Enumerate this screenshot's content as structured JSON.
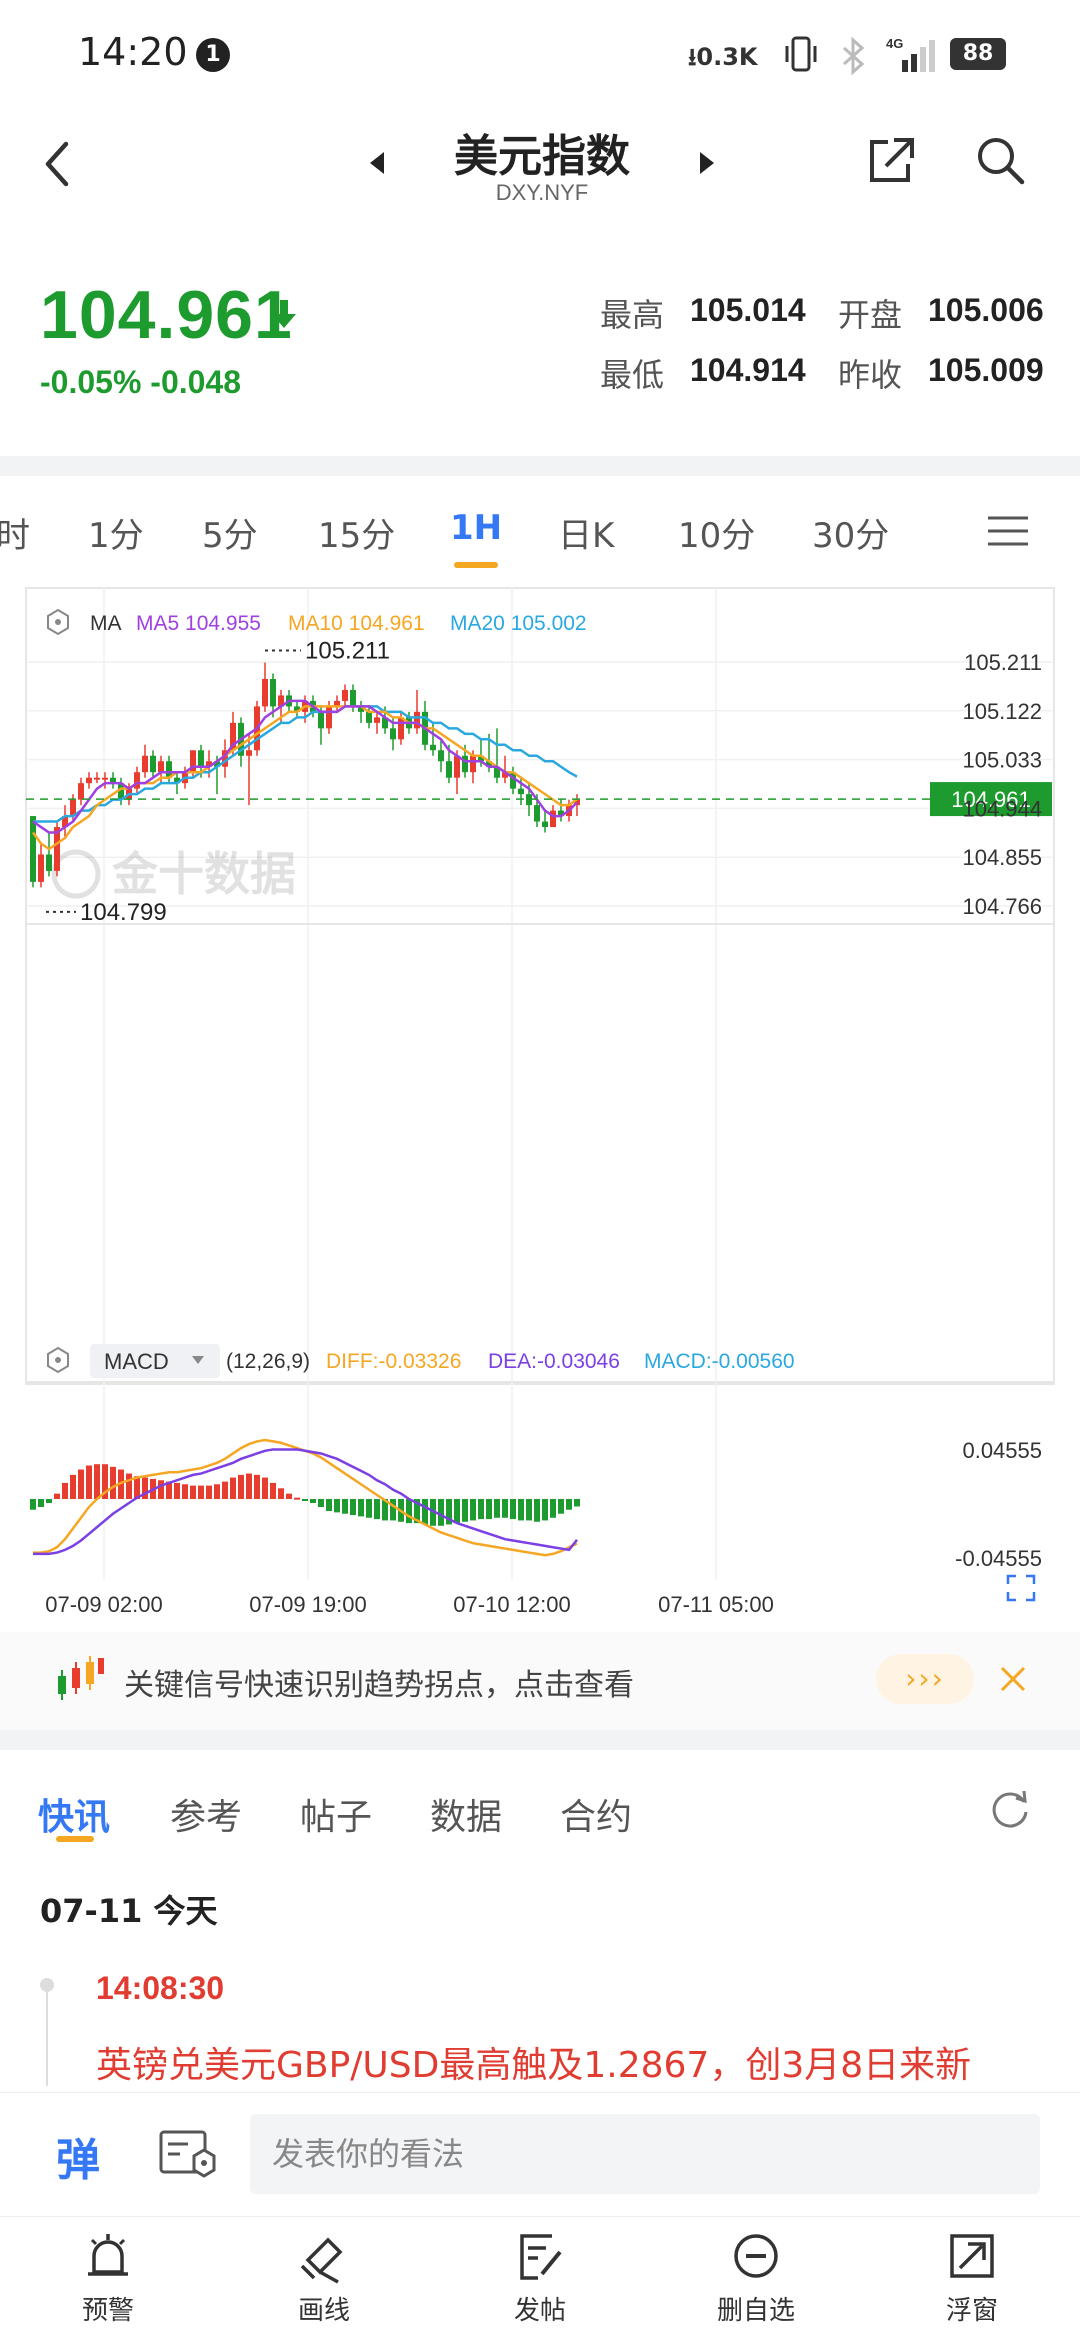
{
  "status_bar": {
    "time": "14:20",
    "notification_count": "1",
    "net_speed": "0.3K",
    "network": "4G",
    "battery": "88"
  },
  "header": {
    "title": "美元指数",
    "subtitle": "DXY.NYF"
  },
  "quote": {
    "price": "104.961",
    "change": "-0.05% -0.048",
    "direction": "down",
    "color": "#1e9b2e",
    "stats": [
      {
        "label": "最高",
        "value": "105.014"
      },
      {
        "label": "开盘",
        "value": "105.006"
      },
      {
        "label": "最低",
        "value": "104.914"
      },
      {
        "label": "昨收",
        "value": "105.009"
      }
    ]
  },
  "interval_tabs": [
    "时",
    "1分",
    "5分",
    "15分",
    "1H",
    "日K",
    "10分",
    "30分"
  ],
  "active_interval": "1H",
  "chart_data": {
    "type": "candlestick",
    "ma_legend": {
      "label": "MA",
      "ma5": "MA5 104.955",
      "ma10": "MA10 104.961",
      "ma20": "MA20 105.002",
      "colors": {
        "ma5": "#a040e0",
        "ma10": "#f5a623",
        "ma20": "#2aa8e0"
      }
    },
    "y_ticks": [
      "105.211",
      "105.122",
      "105.033",
      "104.944",
      "104.855",
      "104.766"
    ],
    "ylim": [
      104.766,
      105.211
    ],
    "high_label": "105.211",
    "low_label": "104.799",
    "current_price_label": "104.961",
    "x_ticks": [
      "07-09 02:00",
      "07-09 19:00",
      "07-10 12:00",
      "07-11 05:00"
    ],
    "watermark": "金十数据",
    "up_color": "#e83c2e",
    "down_color": "#1e9b2e",
    "candles": [
      [
        104.93,
        104.93,
        104.8,
        104.81
      ],
      [
        104.81,
        104.88,
        104.8,
        104.86
      ],
      [
        104.86,
        104.9,
        104.82,
        104.83
      ],
      [
        104.83,
        104.92,
        104.82,
        104.91
      ],
      [
        104.91,
        104.95,
        104.89,
        104.93
      ],
      [
        104.93,
        104.97,
        104.92,
        104.96
      ],
      [
        104.96,
        105.0,
        104.95,
        104.99
      ],
      [
        104.99,
        105.01,
        104.98,
        105.0
      ],
      [
        105.0,
        105.01,
        104.99,
        105.0
      ],
      [
        105.0,
        105.01,
        104.98,
        105.0
      ],
      [
        105.0,
        105.01,
        104.98,
        104.99
      ],
      [
        104.99,
        105.0,
        104.95,
        104.96
      ],
      [
        104.96,
        104.99,
        104.95,
        104.98
      ],
      [
        104.98,
        105.02,
        104.97,
        105.01
      ],
      [
        105.01,
        105.06,
        105.0,
        105.04
      ],
      [
        105.04,
        105.05,
        105.0,
        105.01
      ],
      [
        105.01,
        105.04,
        104.99,
        105.03
      ],
      [
        105.03,
        105.04,
        104.99,
        105.0
      ],
      [
        105.0,
        105.01,
        104.97,
        104.99
      ],
      [
        104.99,
        105.02,
        104.98,
        105.01
      ],
      [
        105.01,
        105.05,
        105.0,
        105.05
      ],
      [
        105.05,
        105.06,
        105.0,
        105.02
      ],
      [
        105.02,
        105.05,
        105.0,
        105.03
      ],
      [
        105.03,
        105.04,
        104.97,
        105.02
      ],
      [
        105.02,
        105.07,
        105.0,
        105.05
      ],
      [
        105.05,
        105.12,
        105.04,
        105.1
      ],
      [
        105.1,
        105.11,
        105.02,
        105.04
      ],
      [
        105.04,
        105.08,
        104.95,
        105.05
      ],
      [
        105.05,
        105.14,
        105.04,
        105.13
      ],
      [
        105.13,
        105.21,
        105.12,
        105.18
      ],
      [
        105.18,
        105.19,
        105.11,
        105.13
      ],
      [
        105.13,
        105.16,
        105.1,
        105.15
      ],
      [
        105.15,
        105.16,
        105.12,
        105.13
      ],
      [
        105.13,
        105.14,
        105.11,
        105.12
      ],
      [
        105.12,
        105.15,
        105.1,
        105.14
      ],
      [
        105.14,
        105.15,
        105.11,
        105.12
      ],
      [
        105.12,
        105.13,
        105.06,
        105.09
      ],
      [
        105.09,
        105.14,
        105.08,
        105.13
      ],
      [
        105.13,
        105.15,
        105.12,
        105.14
      ],
      [
        105.14,
        105.17,
        105.13,
        105.16
      ],
      [
        105.16,
        105.17,
        105.12,
        105.13
      ],
      [
        105.13,
        105.14,
        105.1,
        105.12
      ],
      [
        105.12,
        105.13,
        105.09,
        105.1
      ],
      [
        105.1,
        105.12,
        105.08,
        105.11
      ],
      [
        105.11,
        105.13,
        105.08,
        105.09
      ],
      [
        105.09,
        105.11,
        105.05,
        105.07
      ],
      [
        105.07,
        105.12,
        105.06,
        105.11
      ],
      [
        105.11,
        105.12,
        105.08,
        105.09
      ],
      [
        105.09,
        105.16,
        105.08,
        105.12
      ],
      [
        105.12,
        105.14,
        105.05,
        105.06
      ],
      [
        105.06,
        105.1,
        105.04,
        105.05
      ],
      [
        105.05,
        105.07,
        105.01,
        105.03
      ],
      [
        105.03,
        105.06,
        104.99,
        105.0
      ],
      [
        105.0,
        105.05,
        104.97,
        105.04
      ],
      [
        105.04,
        105.06,
        105.0,
        105.01
      ],
      [
        105.01,
        105.05,
        104.99,
        105.04
      ],
      [
        105.04,
        105.07,
        105.02,
        105.03
      ],
      [
        105.03,
        105.08,
        105.01,
        105.02
      ],
      [
        105.02,
        105.09,
        104.99,
        105.0
      ],
      [
        105.0,
        105.04,
        104.99,
        105.01
      ],
      [
        105.01,
        105.02,
        104.97,
        104.98
      ],
      [
        104.98,
        105.0,
        104.95,
        104.97
      ],
      [
        104.97,
        104.99,
        104.93,
        104.95
      ],
      [
        104.95,
        104.97,
        104.91,
        104.92
      ],
      [
        104.92,
        104.94,
        104.9,
        104.91
      ],
      [
        104.91,
        104.95,
        104.91,
        104.94
      ],
      [
        104.94,
        104.96,
        104.92,
        104.93
      ],
      [
        104.93,
        104.96,
        104.92,
        104.95
      ],
      [
        104.95,
        104.97,
        104.93,
        104.96
      ]
    ],
    "ma5": [
      104.92,
      104.91,
      104.9,
      104.9,
      104.91,
      104.92,
      104.94,
      104.96,
      104.98,
      104.99,
      104.99,
      104.99,
      104.98,
      104.99,
      104.99,
      105.0,
      105.01,
      105.01,
      105.01,
      105.01,
      105.02,
      105.02,
      105.02,
      105.03,
      105.04,
      105.06,
      105.07,
      105.08,
      105.09,
      105.11,
      105.12,
      105.13,
      105.14,
      105.14,
      105.14,
      105.13,
      105.12,
      105.12,
      105.12,
      105.13,
      105.13,
      105.13,
      105.13,
      105.12,
      105.11,
      105.1,
      105.1,
      105.1,
      105.1,
      105.09,
      105.08,
      105.07,
      105.05,
      105.04,
      105.03,
      105.03,
      105.03,
      105.02,
      105.02,
      105.01,
      105.0,
      104.99,
      104.98,
      104.96,
      104.94,
      104.93,
      104.93,
      104.94,
      104.955
    ],
    "ma10": [
      104.9,
      104.88,
      104.87,
      104.88,
      104.89,
      104.91,
      104.92,
      104.93,
      104.95,
      104.96,
      104.97,
      104.98,
      104.98,
      104.99,
      104.99,
      104.99,
      105.0,
      105.0,
      105.01,
      105.01,
      105.01,
      105.01,
      105.02,
      105.03,
      105.04,
      105.05,
      105.06,
      105.07,
      105.08,
      105.09,
      105.1,
      105.11,
      105.12,
      105.12,
      105.13,
      105.13,
      105.13,
      105.13,
      105.13,
      105.13,
      105.13,
      105.13,
      105.12,
      105.12,
      105.12,
      105.11,
      105.11,
      105.1,
      105.1,
      105.09,
      105.09,
      105.08,
      105.07,
      105.06,
      105.05,
      105.04,
      105.04,
      105.03,
      105.02,
      105.01,
      105.01,
      105.0,
      104.99,
      104.98,
      104.97,
      104.96,
      104.95,
      104.95,
      104.961
    ],
    "ma20": [
      104.92,
      104.92,
      104.92,
      104.92,
      104.93,
      104.93,
      104.94,
      104.94,
      104.95,
      104.95,
      104.96,
      104.96,
      104.97,
      104.97,
      104.98,
      104.98,
      104.99,
      104.99,
      104.99,
      105.0,
      105.0,
      105.01,
      105.01,
      105.02,
      105.03,
      105.04,
      105.05,
      105.06,
      105.07,
      105.08,
      105.09,
      105.1,
      105.1,
      105.11,
      105.11,
      105.12,
      105.12,
      105.12,
      105.12,
      105.13,
      105.13,
      105.13,
      105.13,
      105.13,
      105.12,
      105.12,
      105.12,
      105.11,
      105.11,
      105.11,
      105.1,
      105.1,
      105.09,
      105.09,
      105.08,
      105.08,
      105.07,
      105.07,
      105.06,
      105.06,
      105.05,
      105.05,
      105.04,
      105.04,
      105.03,
      105.03,
      105.02,
      105.01,
      105.002
    ],
    "macd": {
      "label": "MACD",
      "params": "(12,26,9)",
      "diff": "DIFF:-0.03326",
      "dea": "DEA:-0.03046",
      "macd": "MACD:-0.00560",
      "colors": {
        "diff": "#f5a623",
        "dea": "#7b3fe4",
        "macd": "#2aa8e0"
      },
      "y_ticks": [
        "0.04555",
        "-0.04555"
      ],
      "ylim": [
        -0.04555,
        0.04555
      ],
      "hist": [
        -0.008,
        -0.006,
        -0.003,
        0.004,
        0.012,
        0.018,
        0.022,
        0.025,
        0.026,
        0.026,
        0.024,
        0.022,
        0.019,
        0.017,
        0.016,
        0.015,
        0.014,
        0.013,
        0.012,
        0.011,
        0.01,
        0.01,
        0.01,
        0.011,
        0.013,
        0.016,
        0.018,
        0.019,
        0.018,
        0.016,
        0.012,
        0.008,
        0.004,
        0.001,
        -0.001,
        -0.003,
        -0.006,
        -0.009,
        -0.01,
        -0.011,
        -0.012,
        -0.013,
        -0.014,
        -0.015,
        -0.016,
        -0.016,
        -0.017,
        -0.018,
        -0.018,
        -0.019,
        -0.02,
        -0.02,
        -0.019,
        -0.018,
        -0.017,
        -0.016,
        -0.015,
        -0.015,
        -0.014,
        -0.014,
        -0.015,
        -0.016,
        -0.016,
        -0.017,
        -0.016,
        -0.014,
        -0.011,
        -0.008,
        -0.0056
      ],
      "diff_line": [
        -0.04,
        -0.04,
        -0.039,
        -0.036,
        -0.03,
        -0.022,
        -0.014,
        -0.006,
        0.0,
        0.005,
        0.009,
        0.012,
        0.014,
        0.016,
        0.017,
        0.018,
        0.019,
        0.02,
        0.02,
        0.021,
        0.022,
        0.023,
        0.025,
        0.027,
        0.03,
        0.034,
        0.038,
        0.041,
        0.043,
        0.044,
        0.043,
        0.042,
        0.04,
        0.038,
        0.036,
        0.034,
        0.031,
        0.027,
        0.023,
        0.019,
        0.015,
        0.011,
        0.007,
        0.003,
        -0.001,
        -0.005,
        -0.009,
        -0.013,
        -0.016,
        -0.019,
        -0.022,
        -0.025,
        -0.027,
        -0.029,
        -0.031,
        -0.033,
        -0.034,
        -0.035,
        -0.036,
        -0.037,
        -0.038,
        -0.039,
        -0.04,
        -0.041,
        -0.042,
        -0.041,
        -0.039,
        -0.036,
        -0.03326
      ],
      "dea_line": [
        -0.041,
        -0.041,
        -0.041,
        -0.04,
        -0.038,
        -0.035,
        -0.031,
        -0.026,
        -0.021,
        -0.016,
        -0.011,
        -0.007,
        -0.003,
        0.001,
        0.004,
        0.007,
        0.01,
        0.012,
        0.014,
        0.016,
        0.018,
        0.019,
        0.021,
        0.023,
        0.025,
        0.027,
        0.03,
        0.032,
        0.034,
        0.036,
        0.037,
        0.037,
        0.037,
        0.037,
        0.036,
        0.035,
        0.034,
        0.032,
        0.03,
        0.027,
        0.024,
        0.021,
        0.018,
        0.014,
        0.011,
        0.007,
        0.004,
        0.0,
        -0.003,
        -0.006,
        -0.009,
        -0.012,
        -0.015,
        -0.018,
        -0.02,
        -0.022,
        -0.024,
        -0.026,
        -0.028,
        -0.03,
        -0.031,
        -0.032,
        -0.033,
        -0.034,
        -0.035,
        -0.036,
        -0.037,
        -0.038,
        -0.03046
      ]
    }
  },
  "banner": {
    "text": "关键信号快速识别趋势拐点，点击查看",
    "more_label": "›››"
  },
  "news_tabs": [
    "快讯",
    "参考",
    "帖子",
    "数据",
    "合约"
  ],
  "news": {
    "date": "07-11 今天",
    "time": "14:08:30",
    "title": "英镑兑美元GBP/USD最高触及1.2867，创3月8日来新"
  },
  "comment": {
    "bullet_label": "弹",
    "placeholder": "发表你的看法"
  },
  "bottom_nav": [
    {
      "label": "预警",
      "icon": "bell-icon"
    },
    {
      "label": "画线",
      "icon": "pen-icon"
    },
    {
      "label": "发帖",
      "icon": "edit-post-icon"
    },
    {
      "label": "删自选",
      "icon": "remove-favorite-icon"
    },
    {
      "label": "浮窗",
      "icon": "float-window-icon"
    }
  ]
}
